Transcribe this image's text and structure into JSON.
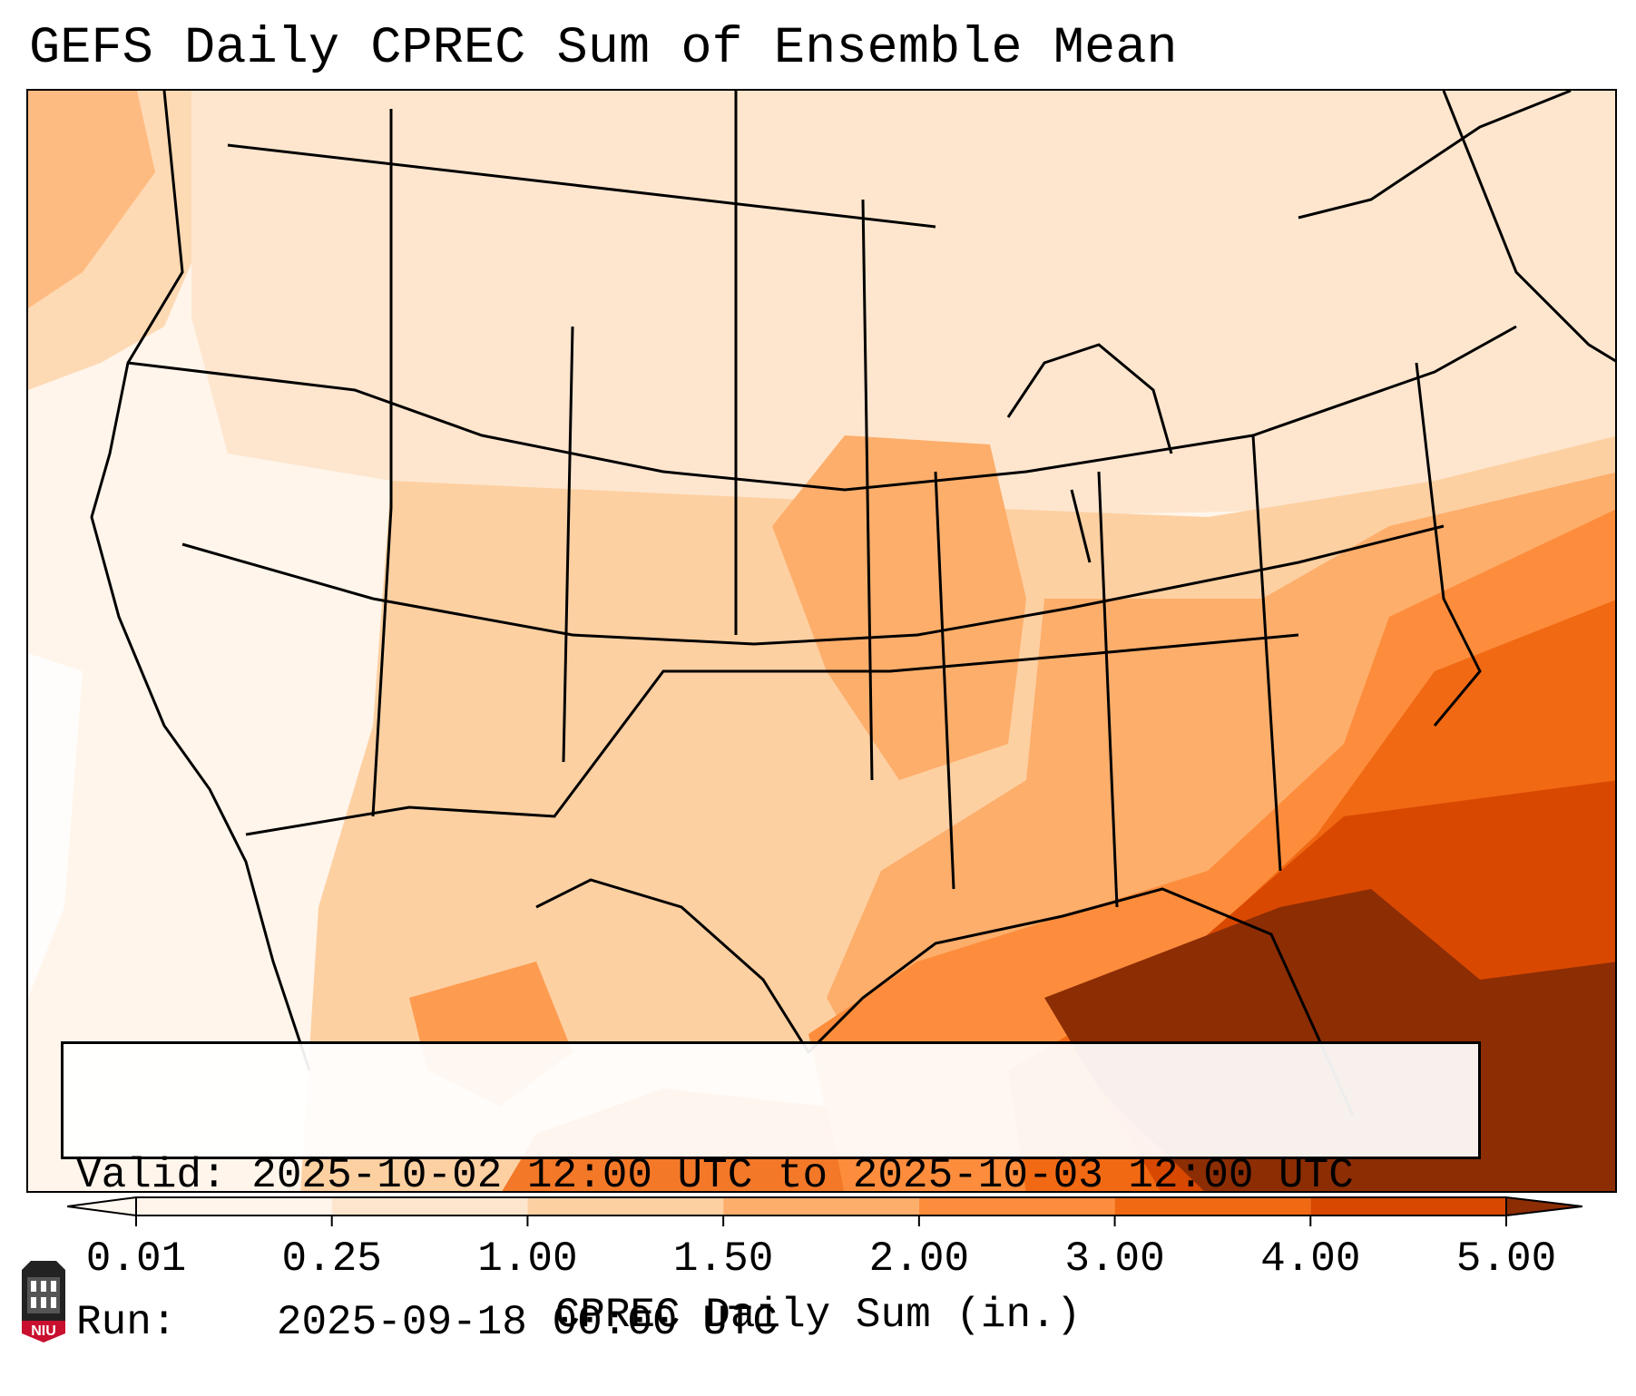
{
  "title": "GEFS Daily CPREC Sum of Ensemble Mean",
  "info": {
    "valid_label": "Valid:",
    "valid_value": "2025-10-02 12:00 UTC to 2025-10-03 12:00 UTC",
    "run_label": "Run:",
    "run_value": "2025-09-18 00:00 UTC"
  },
  "colorbar": {
    "ticks": [
      "0.01",
      "0.25",
      "1.00",
      "1.50",
      "2.00",
      "3.00",
      "4.00",
      "5.00"
    ],
    "colors": [
      "#fff5eb",
      "#fee6ce",
      "#fdd0a2",
      "#fdae6b",
      "#fd8d3c",
      "#f16913",
      "#d94801",
      "#8c2d04"
    ],
    "label": "CPREC Daily Sum (in.)"
  },
  "logo": {
    "text": "NIU",
    "color": "#c8102e"
  },
  "map": {
    "field": "CPREC",
    "units": "in.",
    "region": "CONUS"
  }
}
